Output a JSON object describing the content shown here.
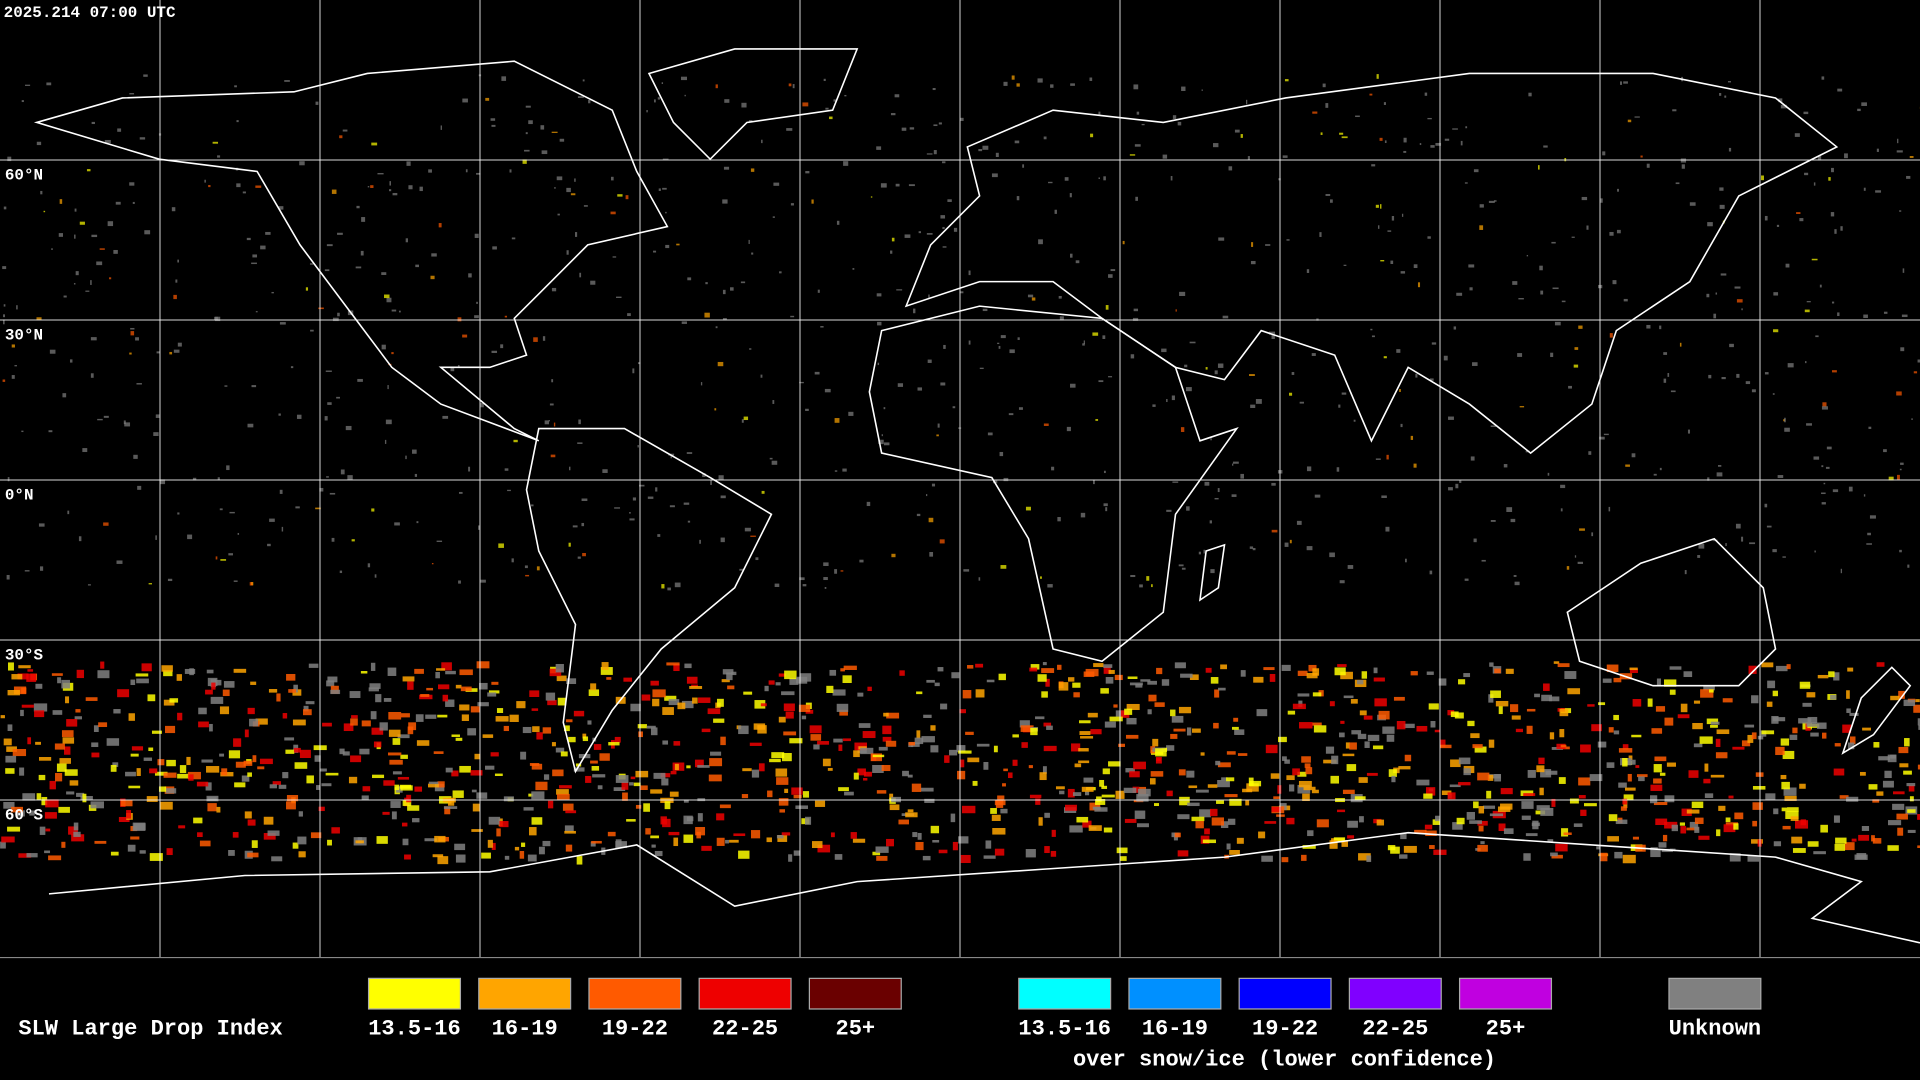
{
  "header": {
    "timestamp": "2025.214 07:00 UTC"
  },
  "map": {
    "latitude_labels": [
      "60°N",
      "30°N",
      "0°N",
      "30°S",
      "60°S"
    ]
  },
  "legend": {
    "title": "SLW Large Drop Index",
    "groups": [
      {
        "items": [
          {
            "label": "13.5-16",
            "color": "#ffff00"
          },
          {
            "label": "16-19",
            "color": "#ffa500"
          },
          {
            "label": "19-22",
            "color": "#ff5a00"
          },
          {
            "label": "22-25",
            "color": "#ee0000"
          },
          {
            "label": "25+",
            "color": "#6a0000"
          }
        ]
      },
      {
        "items": [
          {
            "label": "13.5-16",
            "color": "#00ffff"
          },
          {
            "label": "16-19",
            "color": "#0090ff"
          },
          {
            "label": "19-22",
            "color": "#0000ff"
          },
          {
            "label": "22-25",
            "color": "#8000ff"
          },
          {
            "label": "25+",
            "color": "#c000e0"
          }
        ],
        "caption": "over snow/ice (lower confidence)"
      },
      {
        "items": [
          {
            "label": "Unknown",
            "color": "#808080"
          }
        ]
      }
    ]
  }
}
